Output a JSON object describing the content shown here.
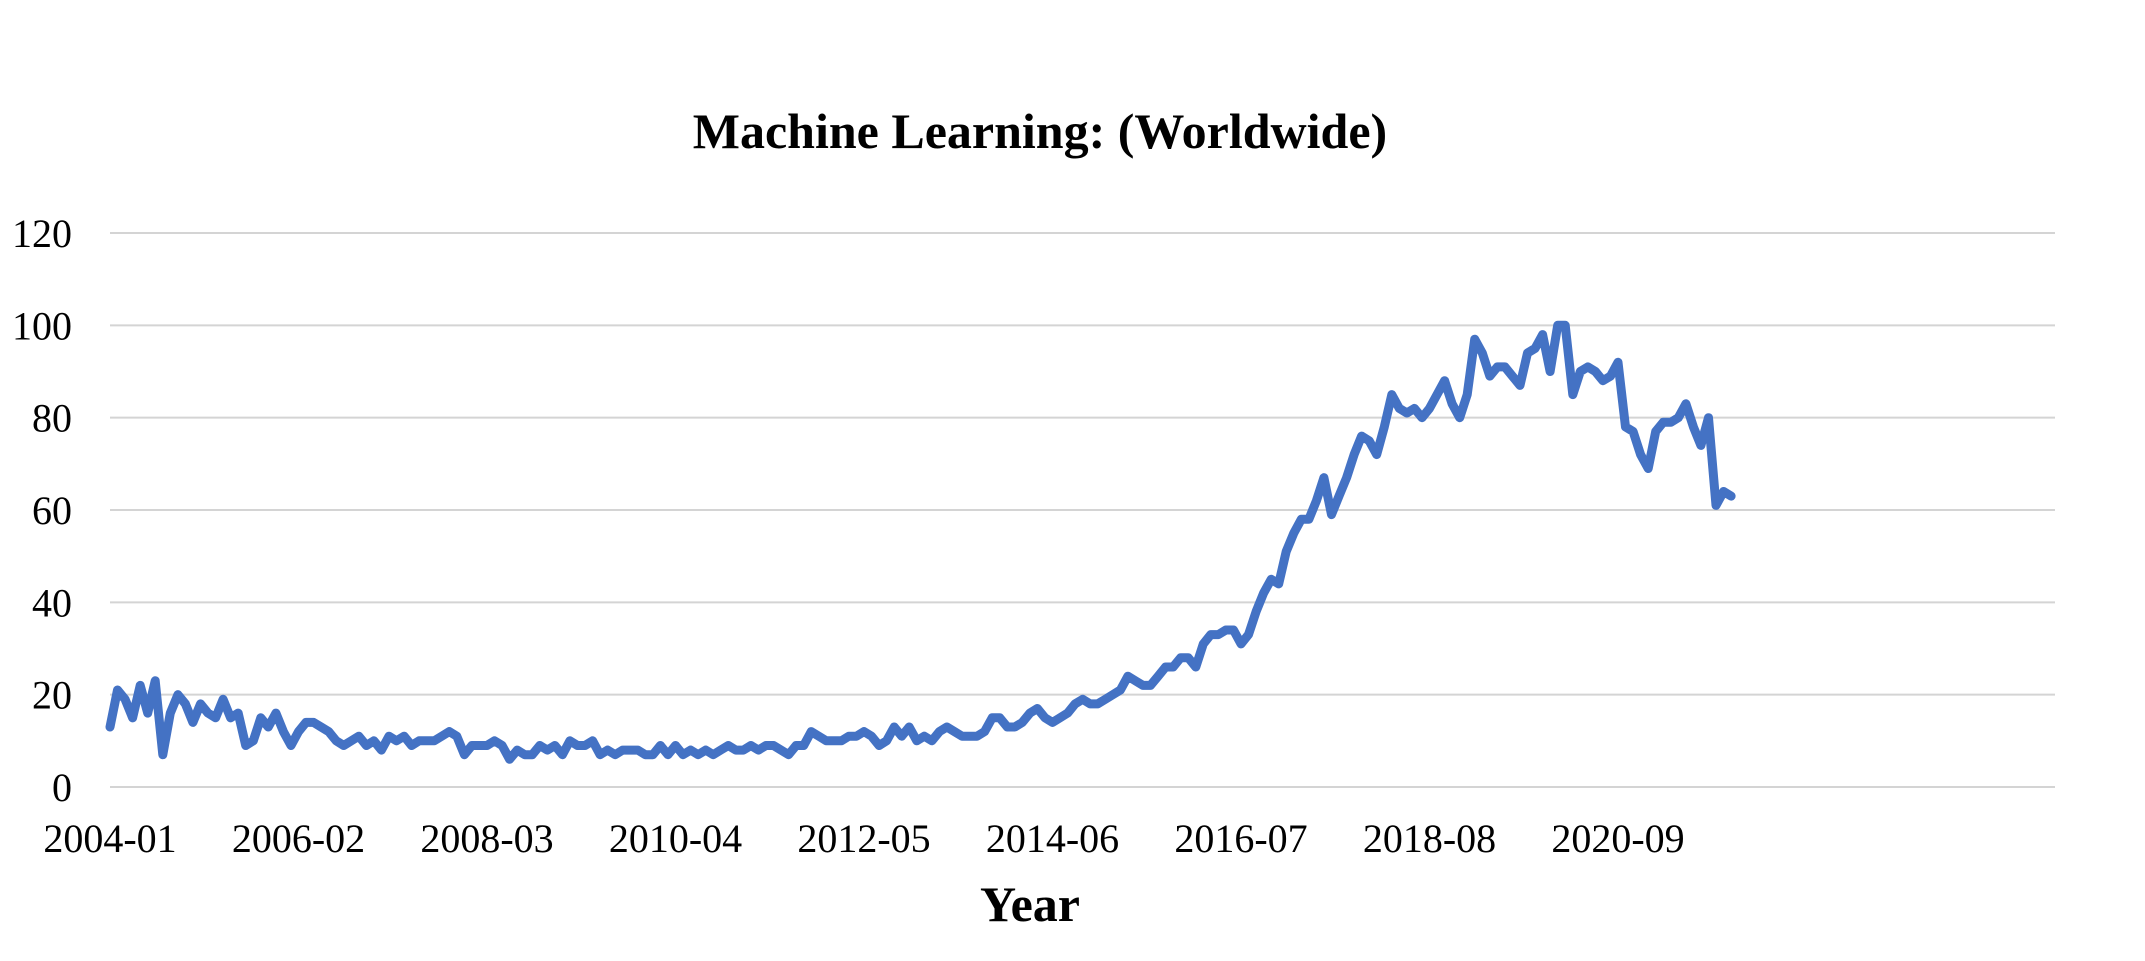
{
  "chart_data": {
    "type": "line",
    "title": "Machine Learning: (Worldwide)",
    "xlabel": "Year",
    "ylabel": "",
    "ylim": [
      0,
      120
    ],
    "yticks": [
      0,
      20,
      40,
      60,
      80,
      100,
      120
    ],
    "xtick_labels": [
      "2004-01",
      "2006-02",
      "2008-03",
      "2010-04",
      "2012-05",
      "2014-06",
      "2016-07",
      "2018-08",
      "2020-09"
    ],
    "x_start": "2004-01",
    "x_interval": "month",
    "grid": true,
    "legend": "none",
    "color": "#4472C4",
    "series": [
      {
        "values": [
          13,
          21,
          19,
          15,
          22,
          16,
          23,
          7,
          16,
          20,
          18,
          14,
          18,
          16,
          15,
          19,
          15,
          16,
          9,
          10,
          15,
          13,
          16,
          12,
          9,
          12,
          14,
          14,
          13,
          12,
          10,
          9,
          10,
          11,
          9,
          10,
          8,
          11,
          10,
          11,
          9,
          10,
          10,
          10,
          11,
          12,
          11,
          7,
          9,
          9,
          9,
          10,
          9,
          6,
          8,
          7,
          7,
          9,
          8,
          9,
          7,
          10,
          9,
          9,
          10,
          7,
          8,
          7,
          8,
          8,
          8,
          7,
          7,
          9,
          7,
          9,
          7,
          8,
          7,
          8,
          7,
          8,
          9,
          8,
          8,
          9,
          8,
          9,
          9,
          8,
          7,
          9,
          9,
          12,
          11,
          10,
          10,
          10,
          11,
          11,
          12,
          11,
          9,
          10,
          13,
          11,
          13,
          10,
          11,
          10,
          12,
          13,
          12,
          11,
          11,
          11,
          12,
          15,
          15,
          13,
          13,
          14,
          16,
          17,
          15,
          14,
          15,
          16,
          18,
          19,
          18,
          18,
          19,
          20,
          21,
          24,
          23,
          22,
          22,
          24,
          26,
          26,
          28,
          28,
          26,
          31,
          33,
          33,
          34,
          34,
          31,
          33,
          38,
          42,
          45,
          44,
          51,
          55,
          58,
          58,
          62,
          67,
          59,
          63,
          67,
          72,
          76,
          75,
          72,
          78,
          85,
          82,
          81,
          82,
          80,
          82,
          85,
          88,
          83,
          80,
          85,
          97,
          94,
          89,
          91,
          91,
          89,
          87,
          94,
          95,
          98,
          90,
          100,
          100,
          85,
          90,
          91,
          90,
          88,
          89,
          92,
          78,
          77,
          72,
          69,
          77,
          79,
          79,
          80,
          83,
          78,
          74,
          80,
          61,
          64,
          63
        ]
      }
    ]
  }
}
